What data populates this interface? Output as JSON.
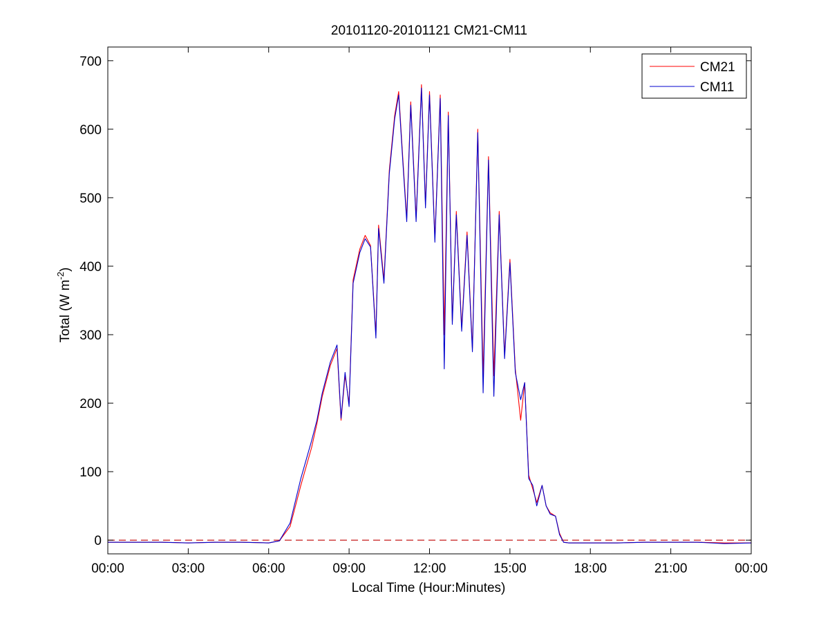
{
  "chart_data": {
    "type": "line",
    "title": "20101120-20101121 CM21-CM11",
    "xlabel": "Local Time (Hour:Minutes)",
    "ylabel": {
      "main": "Total (W m",
      "sup": "-2",
      "close": ")"
    },
    "xlim": [
      0,
      24
    ],
    "ylim": [
      -20,
      720
    ],
    "x_ticks": [
      0,
      3,
      6,
      9,
      12,
      15,
      18,
      21,
      24
    ],
    "x_tick_labels": [
      "00:00",
      "03:00",
      "06:00",
      "09:00",
      "12:00",
      "15:00",
      "18:00",
      "21:00",
      "00:00"
    ],
    "y_ticks": [
      0,
      100,
      200,
      300,
      400,
      500,
      600,
      700
    ],
    "y_tick_labels": [
      "0",
      "100",
      "200",
      "300",
      "400",
      "500",
      "600",
      "700"
    ],
    "grid": false,
    "legend_position": "top-right",
    "zero_line": {
      "y": 0,
      "style": "dashed",
      "color": "#c00000"
    },
    "series": [
      {
        "name": "CM21",
        "color": "#ff0000",
        "x": [
          0,
          1,
          2,
          3,
          4,
          5,
          6,
          6.4,
          6.8,
          7.2,
          7.6,
          7.8,
          8.0,
          8.3,
          8.55,
          8.7,
          8.85,
          9.0,
          9.15,
          9.4,
          9.6,
          9.8,
          10.0,
          10.1,
          10.3,
          10.5,
          10.7,
          10.85,
          11.0,
          11.15,
          11.3,
          11.5,
          11.7,
          11.85,
          12.0,
          12.2,
          12.4,
          12.55,
          12.7,
          12.85,
          13.0,
          13.2,
          13.4,
          13.6,
          13.8,
          14.0,
          14.2,
          14.4,
          14.6,
          14.8,
          15.0,
          15.2,
          15.4,
          15.55,
          15.7,
          15.85,
          16.0,
          16.2,
          16.35,
          16.5,
          16.7,
          16.85,
          17.0,
          17.2,
          17.5,
          18.0,
          19,
          20,
          21,
          22,
          23,
          24
        ],
        "y": [
          -3,
          -3,
          -3,
          -4,
          -3,
          -3,
          -4,
          -1,
          20,
          80,
          135,
          170,
          210,
          255,
          280,
          175,
          240,
          200,
          380,
          425,
          445,
          430,
          300,
          460,
          380,
          540,
          620,
          655,
          560,
          470,
          640,
          470,
          665,
          490,
          655,
          440,
          650,
          300,
          625,
          320,
          480,
          310,
          450,
          280,
          600,
          240,
          560,
          240,
          480,
          270,
          410,
          250,
          175,
          230,
          95,
          75,
          55,
          80,
          50,
          40,
          35,
          10,
          -3,
          -4,
          -4,
          -4,
          -4,
          -3,
          -3,
          -3,
          -4,
          -4
        ]
      },
      {
        "name": "CM11",
        "color": "#0000cc",
        "x": [
          0,
          1,
          2,
          3,
          4,
          5,
          6,
          6.4,
          6.8,
          7.2,
          7.6,
          7.8,
          8.0,
          8.3,
          8.55,
          8.7,
          8.85,
          9.0,
          9.15,
          9.4,
          9.6,
          9.8,
          10.0,
          10.1,
          10.3,
          10.5,
          10.7,
          10.85,
          11.0,
          11.15,
          11.3,
          11.5,
          11.7,
          11.85,
          12.0,
          12.2,
          12.4,
          12.55,
          12.7,
          12.85,
          13.0,
          13.2,
          13.4,
          13.6,
          13.8,
          14.0,
          14.2,
          14.4,
          14.6,
          14.8,
          15.0,
          15.2,
          15.4,
          15.55,
          15.7,
          15.85,
          16.0,
          16.2,
          16.35,
          16.5,
          16.7,
          16.85,
          17.0,
          17.2,
          17.5,
          18.0,
          19,
          20,
          21,
          22,
          23,
          24
        ],
        "y": [
          -3,
          -3,
          -3,
          -4,
          -3,
          -3,
          -4,
          -1,
          25,
          90,
          145,
          175,
          215,
          260,
          285,
          178,
          245,
          195,
          375,
          420,
          440,
          428,
          295,
          455,
          375,
          535,
          615,
          650,
          555,
          465,
          635,
          465,
          660,
          485,
          650,
          435,
          645,
          250,
          620,
          315,
          475,
          305,
          445,
          275,
          595,
          215,
          555,
          210,
          475,
          265,
          405,
          245,
          205,
          230,
          90,
          80,
          50,
          80,
          50,
          38,
          35,
          8,
          -3,
          -4,
          -4,
          -4,
          -4,
          -3,
          -3,
          -3,
          -5,
          -4
        ]
      }
    ]
  }
}
